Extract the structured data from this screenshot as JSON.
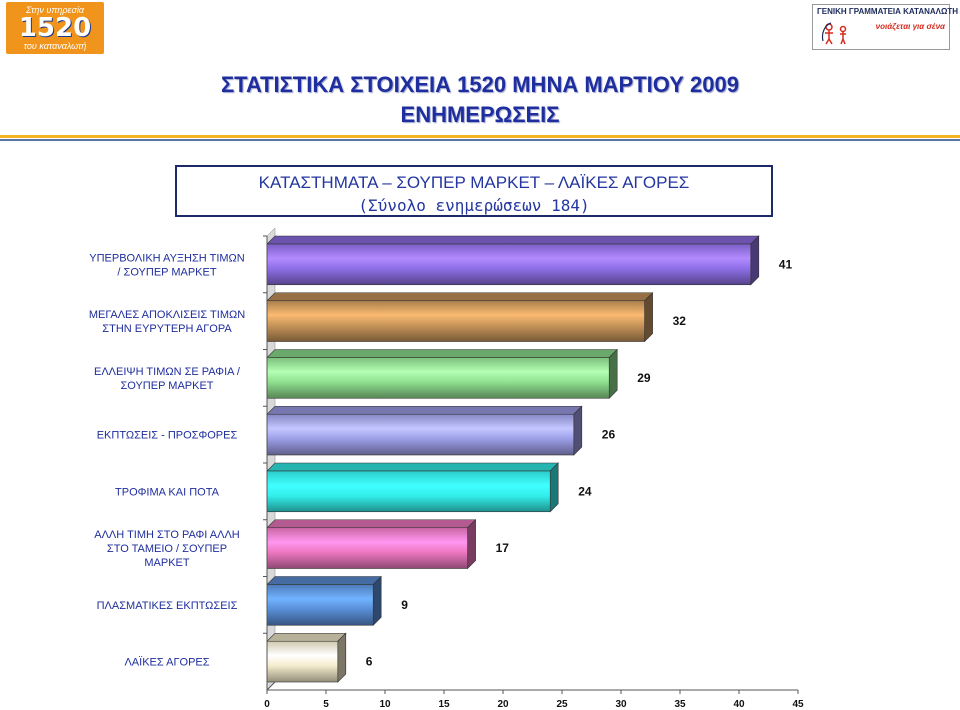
{
  "header": {
    "left_logo": {
      "top": "Στην υπηρεσία",
      "number": "1520",
      "bottom": "του καταναλωτή"
    },
    "right_logo": {
      "line1": "ΓΕΝΙΚΗ ΓΡΑΜΜΑΤΕΙΑ ΚΑΤΑΝΑΛΩΤΗ",
      "line2": "νοιάζεται για σένα"
    },
    "title_line1": "ΣΤΑΤΙΣΤΙΚΑ ΣΤΟΙΧΕΙΑ 1520 ΜΗΝΑ ΜΑΡΤΙΟΥ 2009",
    "title_line2": "ΕΝΗΜΕΡΩΣΕΙΣ",
    "accent": "#1f2e9e"
  },
  "chart_data": {
    "type": "bar",
    "orientation": "horizontal",
    "title": "ΚΑΤΑΣΤΗΜΑΤΑ – ΣΟΥΠΕΡ ΜΑΡΚΕΤ – ΛΑΪΚΕΣ ΑΓΟΡΕΣ",
    "subtitle": "(Σύνολο ενημερώσεων 184)",
    "xlim": [
      0,
      45
    ],
    "xticks": [
      0,
      5,
      10,
      15,
      20,
      25,
      30,
      35,
      40,
      45
    ],
    "grid": false,
    "legend": "none",
    "categories": [
      [
        "ΥΠΕΡΒΟΛΙΚΗ ΑΥΞΗΣΗ ΤΙΜΩΝ",
        "/ ΣΟΥΠΕΡ ΜΑΡΚΕΤ"
      ],
      [
        "ΜΕΓΑΛΕΣ ΑΠΟΚΛΙΣΕΙΣ ΤΙΜΩΝ",
        "ΣΤΗΝ ΕΥΡΥΤΕΡΗ ΑΓΟΡΑ"
      ],
      [
        "ΕΛΛΕΙΨΗ ΤΙΜΩΝ ΣΕ ΡΑΦΙΑ /",
        "ΣΟΥΠΕΡ ΜΑΡΚΕΤ"
      ],
      [
        "ΕΚΠΤΩΣΕΙΣ - ΠΡΟΣΦΟΡΕΣ"
      ],
      [
        "ΤΡΟΦΙΜΑ ΚΑΙ ΠΟΤΑ"
      ],
      [
        "ΑΛΛΗ ΤΙΜΗ ΣΤΟ ΡΑΦΙ ΑΛΛΗ",
        "ΣΤΟ ΤΑΜΕΙΟ / ΣΟΥΠΕΡ",
        "ΜΑΡΚΕΤ"
      ],
      [
        "ΠΛΑΣΜΑΤΙΚΕΣ ΕΚΠΤΩΣΕΙΣ"
      ],
      [
        "ΛΑΪΚΕΣ ΑΓΟΡΕΣ"
      ]
    ],
    "values": [
      41,
      32,
      29,
      26,
      24,
      17,
      9,
      6
    ],
    "colors": [
      "#8f6fe8",
      "#c8955a",
      "#8fe08f",
      "#9d9fe8",
      "#33f0ec",
      "#ee78c0",
      "#5a8fd8",
      "#f5eccc"
    ]
  }
}
